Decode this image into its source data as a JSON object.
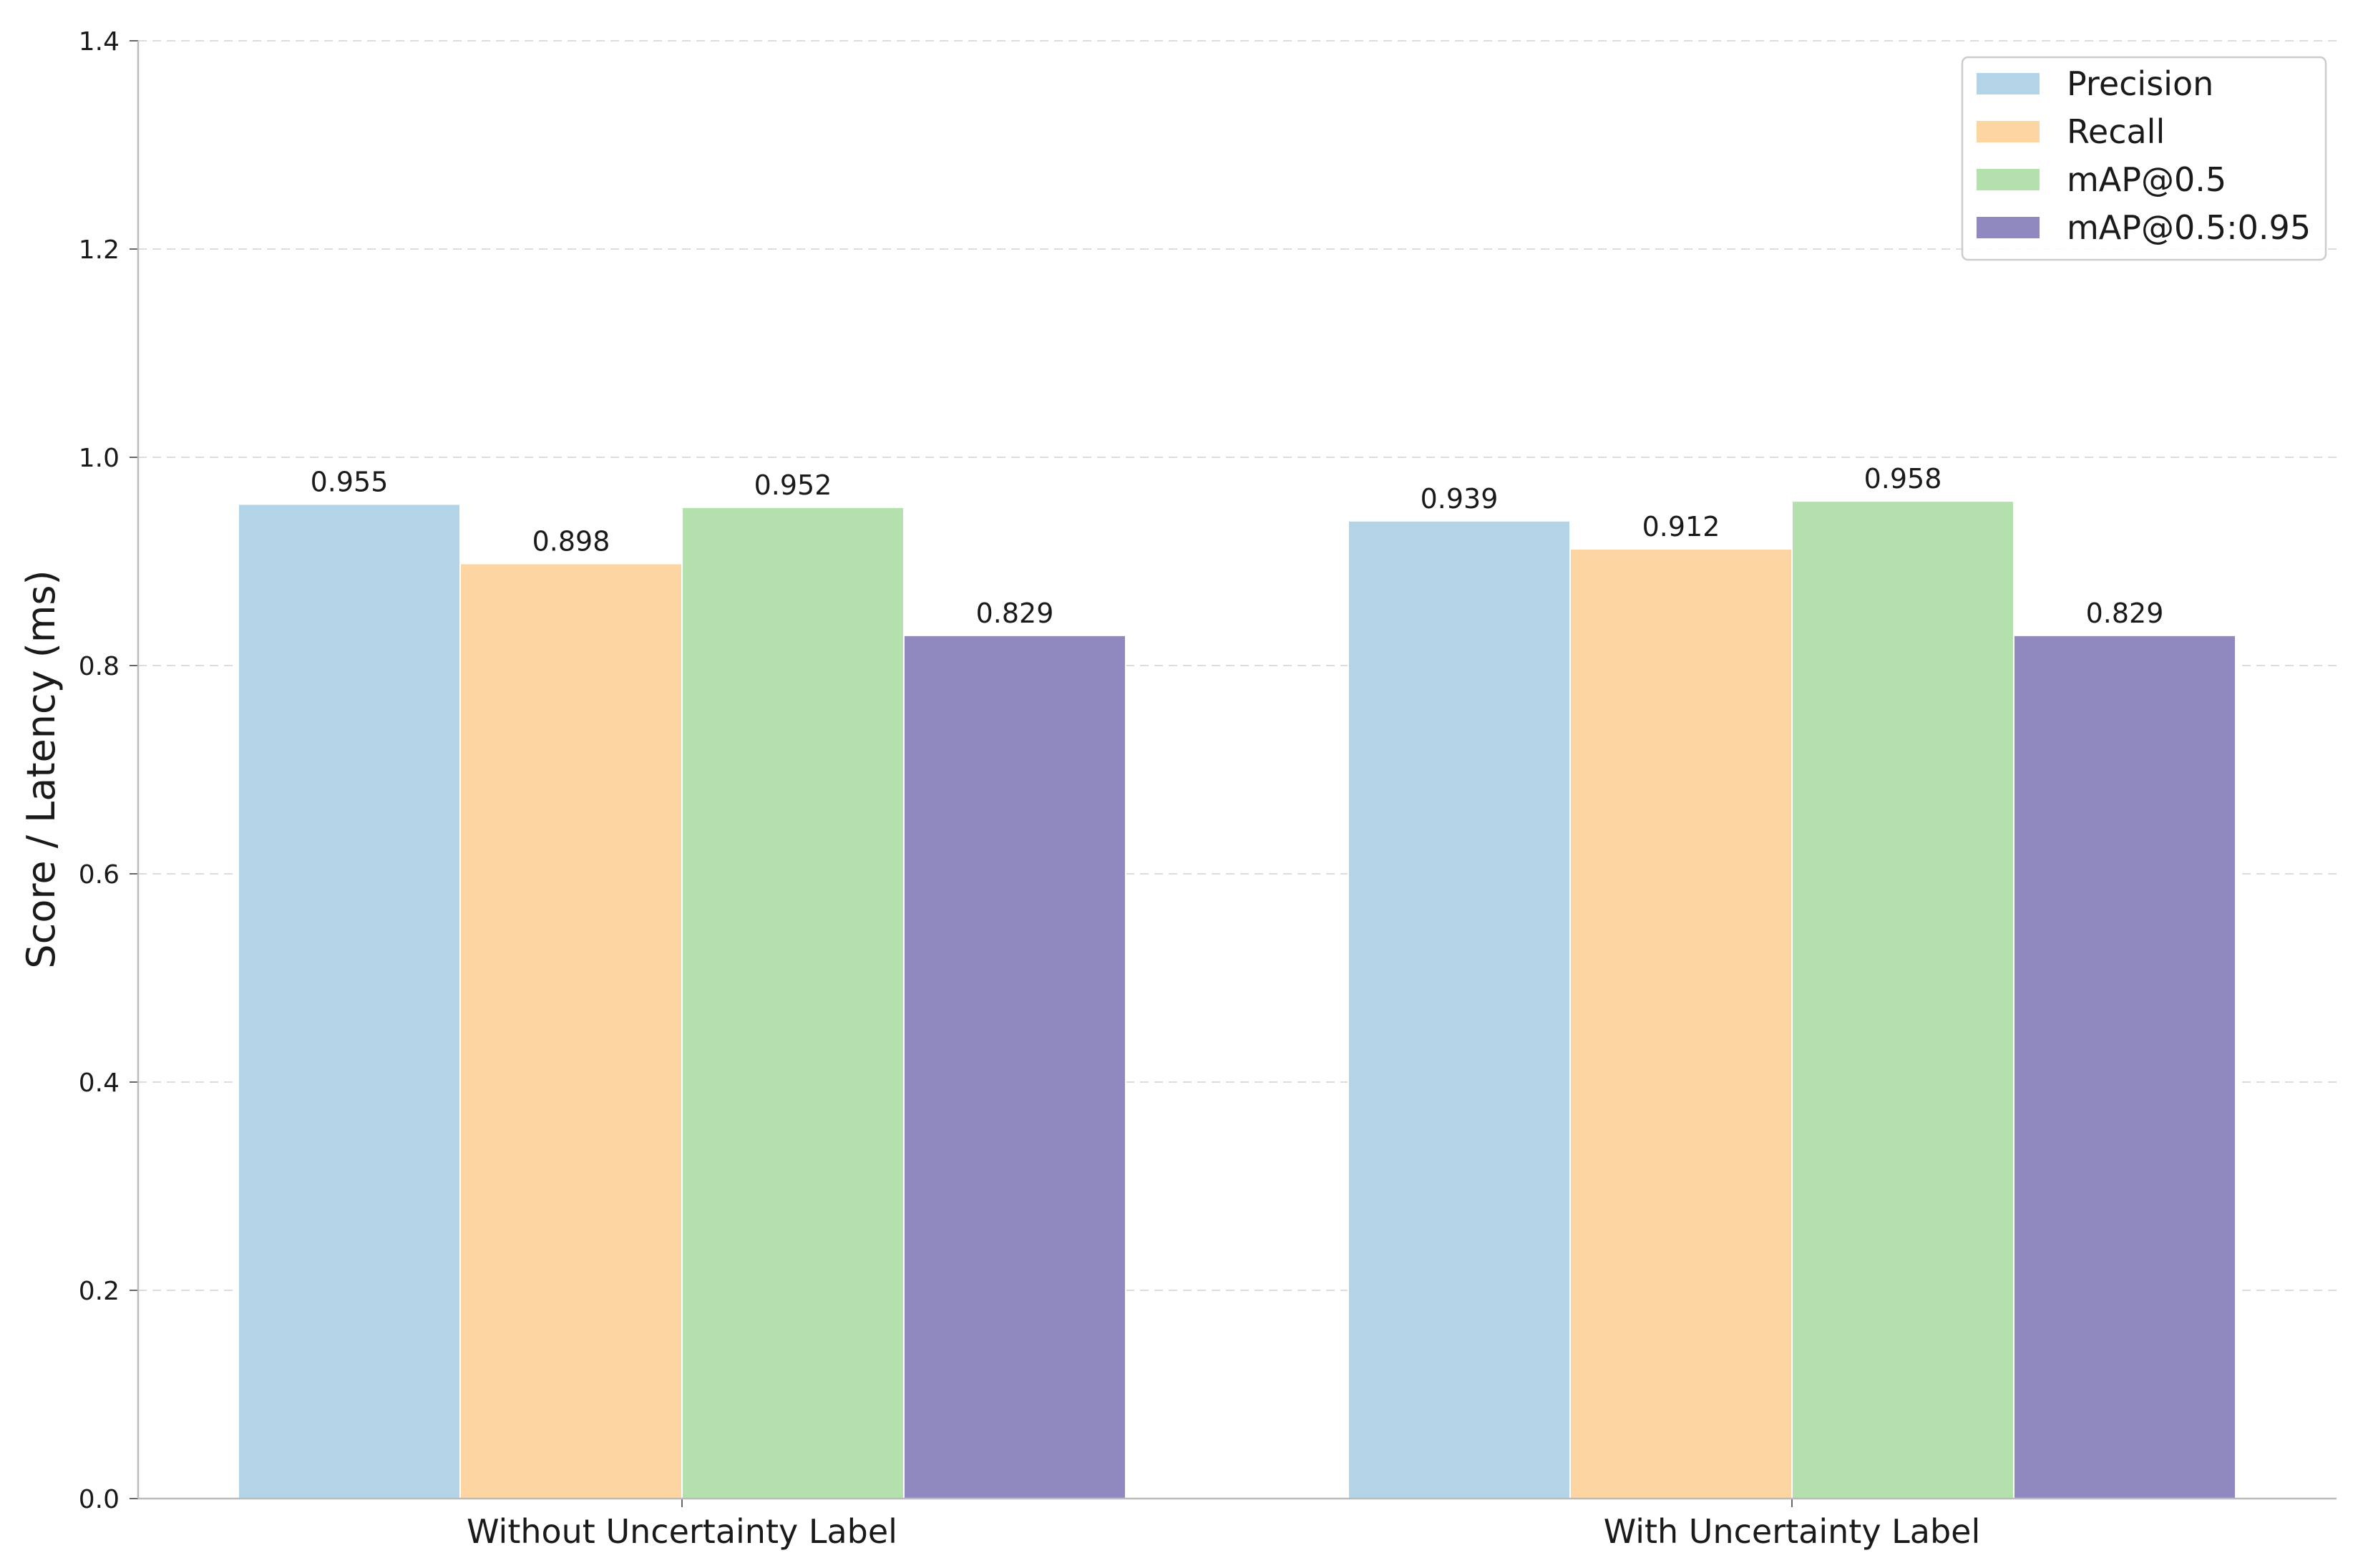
{
  "chart_data": {
    "type": "bar",
    "title": "",
    "xlabel": "",
    "ylabel": "Score / Latency (ms)",
    "ylim": [
      0,
      1.4
    ],
    "yticks": [
      0.0,
      0.2,
      0.4,
      0.6,
      0.8,
      1.0,
      1.2,
      1.4
    ],
    "ytick_labels": [
      "0.0",
      "0.2",
      "0.4",
      "0.6",
      "0.8",
      "1.0",
      "1.2",
      "1.4"
    ],
    "grid": "horizontal dashed",
    "legend_position": "top-right",
    "categories": [
      "Without Uncertainty Label",
      "With Uncertainty Label"
    ],
    "series": [
      {
        "name": "Precision",
        "color": "#b3d4e6",
        "values": [
          0.955,
          0.939
        ],
        "labels": [
          "0.955",
          "0.939"
        ]
      },
      {
        "name": "Recall",
        "color": "#fcd5a2",
        "values": [
          0.898,
          0.912
        ],
        "labels": [
          "0.898",
          "0.912"
        ]
      },
      {
        "name": "mAP@0.5",
        "color": "#b3e0ac",
        "values": [
          0.952,
          0.958
        ],
        "labels": [
          "0.952",
          "0.958"
        ]
      },
      {
        "name": "mAP@0.5:0.95",
        "color": "#8f89c0",
        "values": [
          0.829,
          0.829
        ],
        "labels": [
          "0.829",
          "0.829"
        ]
      }
    ]
  }
}
